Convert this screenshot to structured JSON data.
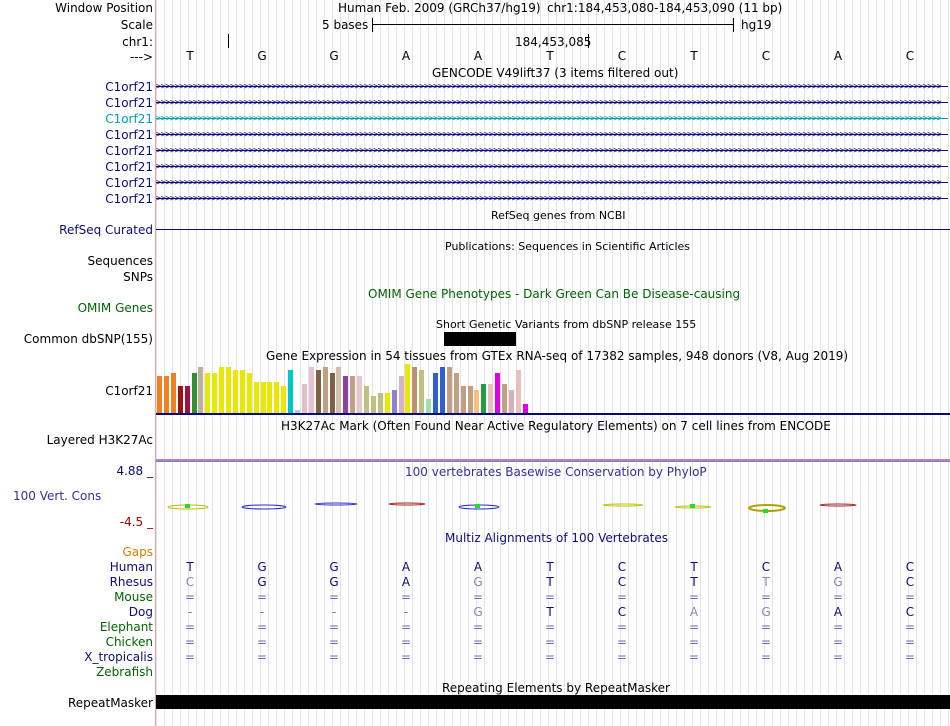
{
  "header": {
    "window_position_label": "Window Position",
    "assembly_text": "Human Feb. 2009 (GRCh37/hg19)",
    "position_text": "chr1:184,453,080-184,453,090 (11 bp)",
    "scale_label": "Scale",
    "scale_text": "5 bases",
    "scale_db": "hg19",
    "chrom_label": "chr1:",
    "coord_text": "184,453,085",
    "strand_label": "--->"
  },
  "bases": [
    "T",
    "G",
    "G",
    "A",
    "A",
    "T",
    "C",
    "T",
    "C",
    "A",
    "C"
  ],
  "gencode": {
    "title": "GENCODE V49lift37 (3 items filtered out)",
    "items": [
      "C1orf21",
      "C1orf21",
      "C1orf21",
      "C1orf21",
      "C1orf21",
      "C1orf21",
      "C1orf21",
      "C1orf21"
    ],
    "highlight_index": 2
  },
  "refseq": {
    "title": "RefSeq genes from NCBI",
    "label": "RefSeq Curated"
  },
  "publications": {
    "title": "Publications: Sequences in Scientific Articles",
    "label1": "Sequences",
    "label2": "SNPs"
  },
  "omim": {
    "label": "OMIM Genes",
    "title": "OMIM Gene Phenotypes - Dark Green Can Be Disease-causing"
  },
  "dbsnp": {
    "title": "Short Genetic Variants from dbSNP release 155",
    "label": "Common dbSNP(155)"
  },
  "gtex": {
    "title": "Gene Expression in 54 tissues from GTEx RNA-seq of 17382 samples, 948 donors (V8, Aug 2019)",
    "label": "C1orf21",
    "bar_values": [
      37,
      37,
      40,
      27,
      27,
      40,
      46,
      40,
      40,
      46,
      46,
      43,
      43,
      40,
      31,
      31,
      31,
      31,
      27,
      43,
      3,
      29,
      46,
      43,
      46,
      40,
      46,
      37,
      37,
      37,
      27,
      17,
      20,
      20,
      23,
      37,
      49,
      46,
      43,
      14,
      40,
      46,
      46,
      40,
      27,
      27,
      23,
      29,
      29,
      40,
      29,
      23,
      43,
      9
    ],
    "bar_colors": [
      "#f08020",
      "#f08020",
      "#f08020",
      "#a01010",
      "#a01040",
      "#309030",
      "#c0b0a0",
      "#e8e800",
      "#e8e800",
      "#e8e800",
      "#e8e800",
      "#e8e800",
      "#e8e800",
      "#e8e800",
      "#e8e800",
      "#e8e800",
      "#e8e800",
      "#e8e800",
      "#e8e800",
      "#00c8c8",
      "#b0c8e0",
      "#e0c0c0",
      "#e8c0d0",
      "#806040",
      "#c0a080",
      "#806040",
      "#d0c0b0",
      "#9040a0",
      "#c0a080",
      "#e8c8c8",
      "#c0c080",
      "#c0c080",
      "#c0c080",
      "#e8e800",
      "#9080d0",
      "#d8b0c8",
      "#e8e800",
      "#c09070",
      "#c0c080",
      "#a0e0a0",
      "#3060d0",
      "#3060d0",
      "#c0a080",
      "#c0a080",
      "#c0a080",
      "#c0a080",
      "#f8c080",
      "#20a040",
      "#e8c0c0",
      "#e000e0",
      "#c0a080",
      "#d8b0b0",
      "#e8c0c0",
      "#e000e0"
    ]
  },
  "h3k27ac": {
    "label": "Layered H3K27Ac",
    "title": "H3K27Ac Mark (Often Found Near Active Regulatory Elements) on 7 cell lines from ENCODE"
  },
  "phylop": {
    "max_label": "4.88 _",
    "min_label": "-4.5 _",
    "track_label": "100 Vert. Cons",
    "title": "100 vertebrates Basewise Conservation by PhyloP"
  },
  "multiz": {
    "title": "Multiz Alignments of 100 Vertebrates",
    "gaps_label": "Gaps",
    "species": [
      {
        "name": "Human",
        "bases": [
          "T",
          "G",
          "G",
          "A",
          "A",
          "T",
          "C",
          "T",
          "C",
          "A",
          "C"
        ]
      },
      {
        "name": "Rhesus",
        "bases": [
          "C",
          "G",
          "G",
          "A",
          "G",
          "T",
          "C",
          "T",
          "T",
          "G",
          "C"
        ]
      },
      {
        "name": "Mouse",
        "bases": [
          "=",
          "=",
          "=",
          "=",
          "=",
          "=",
          "=",
          "=",
          "=",
          "=",
          "="
        ]
      },
      {
        "name": "Dog",
        "bases": [
          "-",
          "-",
          "-",
          "-",
          "G",
          "T",
          "C",
          "A",
          "G",
          "A",
          "C"
        ]
      },
      {
        "name": "Elephant",
        "bases": [
          "=",
          "=",
          "=",
          "=",
          "=",
          "=",
          "=",
          "=",
          "=",
          "=",
          "="
        ]
      },
      {
        "name": "Chicken",
        "bases": [
          "=",
          "=",
          "=",
          "=",
          "=",
          "=",
          "=",
          "=",
          "=",
          "=",
          "="
        ]
      },
      {
        "name": "X_tropicalis",
        "bases": [
          "=",
          "=",
          "=",
          "=",
          "=",
          "=",
          "=",
          "=",
          "=",
          "=",
          "="
        ]
      },
      {
        "name": "Zebrafish",
        "bases": [
          "",
          "",
          "",
          "",
          "",
          "",
          "",
          "",
          "",
          "",
          ""
        ]
      }
    ]
  },
  "repeatmasker": {
    "title": "Repeating Elements by RepeatMasker",
    "label": "RepeatMasker"
  }
}
